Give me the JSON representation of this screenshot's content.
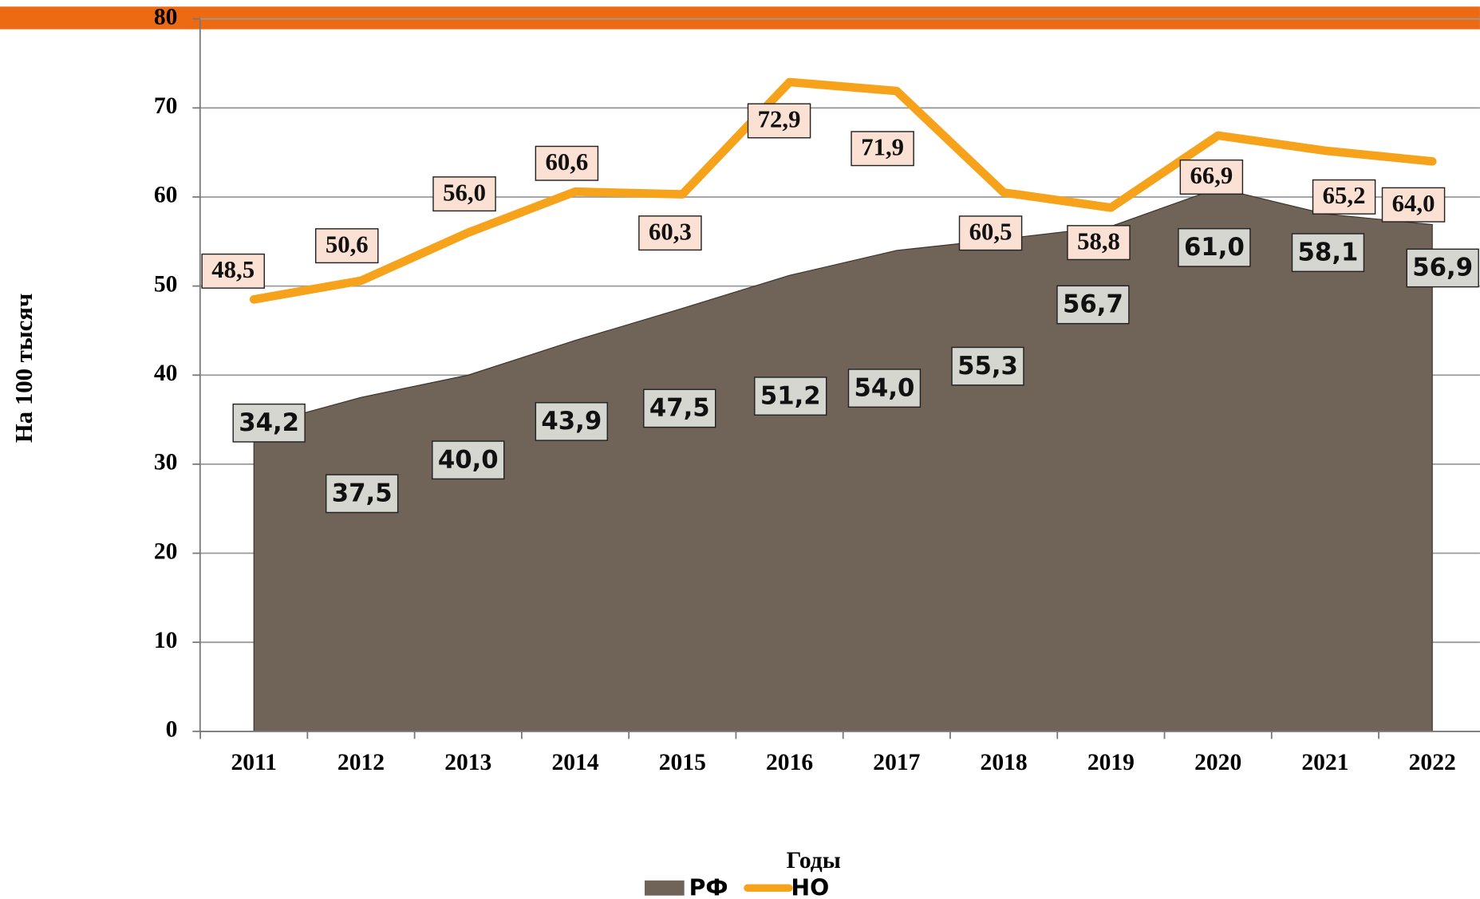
{
  "chart_data": {
    "type": "area_line",
    "y_label": "На 100 тысяч",
    "x_label": "Годы",
    "categories": [
      "2011",
      "2012",
      "2013",
      "2014",
      "2015",
      "2016",
      "2017",
      "2018",
      "2019",
      "2020",
      "2021",
      "2022"
    ],
    "series": [
      {
        "name": "РФ",
        "type": "area",
        "color": "#6f6457",
        "values": [
          34.2,
          37.5,
          40.0,
          43.9,
          47.5,
          51.2,
          54.0,
          55.3,
          56.7,
          61.0,
          58.1,
          56.9
        ],
        "value_labels": [
          "34,2",
          "37,5",
          "40,0",
          "43,9",
          "47,5",
          "51,2",
          "54,0",
          "55,3",
          "56,7",
          "61,0",
          "58,1",
          "56,9"
        ]
      },
      {
        "name": "НО",
        "type": "line",
        "color": "#f7a21b",
        "values": [
          48.5,
          50.6,
          56.0,
          60.6,
          60.3,
          72.9,
          71.9,
          60.5,
          58.8,
          66.9,
          65.2,
          64.0
        ],
        "value_labels": [
          "48,5",
          "50,6",
          "56,0",
          "60,6",
          "60,3",
          "72,9",
          "71,9",
          "60,5",
          "58,8",
          "66,9",
          "65,2",
          "64,0"
        ]
      }
    ],
    "ylim": [
      0,
      80
    ],
    "yticks": [
      0,
      10,
      20,
      30,
      40,
      50,
      60,
      70,
      80
    ],
    "grid": true,
    "legend": "bottom"
  }
}
